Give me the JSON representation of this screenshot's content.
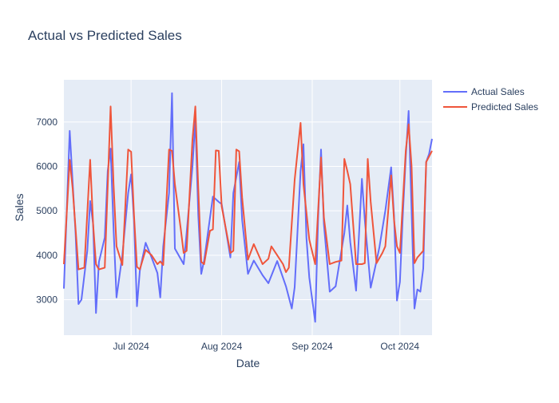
{
  "chart_data": {
    "type": "line",
    "title": "Actual vs Predicted Sales",
    "xlabel": "Date",
    "ylabel": "Sales",
    "x_range": [
      "2024-06-08",
      "2024-10-12"
    ],
    "ylim": [
      2200,
      7950
    ],
    "x_ticks": [
      {
        "date": "2024-07-01",
        "label": "Jul 2024"
      },
      {
        "date": "2024-08-01",
        "label": "Aug 2024"
      },
      {
        "date": "2024-09-01",
        "label": "Sep 2024"
      },
      {
        "date": "2024-10-01",
        "label": "Oct 2024"
      }
    ],
    "y_ticks": [
      3000,
      4000,
      5000,
      6000,
      7000
    ],
    "grid": true,
    "legend_position": "top-right",
    "colors": {
      "plot_bg": "#E5ECF6",
      "grid": "#ffffff",
      "text": "#2a3f5f"
    },
    "series": [
      {
        "name": "Actual Sales",
        "color": "#636EFA",
        "points": [
          [
            "2024-06-08",
            3250
          ],
          [
            "2024-06-10",
            6800
          ],
          [
            "2024-06-12",
            4500
          ],
          [
            "2024-06-13",
            2900
          ],
          [
            "2024-06-14",
            3000
          ],
          [
            "2024-06-16",
            4100
          ],
          [
            "2024-06-17",
            5220
          ],
          [
            "2024-06-18",
            4700
          ],
          [
            "2024-06-19",
            2700
          ],
          [
            "2024-06-20",
            3850
          ],
          [
            "2024-06-22",
            4400
          ],
          [
            "2024-06-23",
            5900
          ],
          [
            "2024-06-24",
            6400
          ],
          [
            "2024-06-25",
            4600
          ],
          [
            "2024-06-26",
            3050
          ],
          [
            "2024-06-28",
            4000
          ],
          [
            "2024-06-30",
            5400
          ],
          [
            "2024-07-01",
            5820
          ],
          [
            "2024-07-02",
            4800
          ],
          [
            "2024-07-03",
            2850
          ],
          [
            "2024-07-04",
            3650
          ],
          [
            "2024-07-06",
            4280
          ],
          [
            "2024-07-08",
            3950
          ],
          [
            "2024-07-10",
            3600
          ],
          [
            "2024-07-11",
            3050
          ],
          [
            "2024-07-12",
            4200
          ],
          [
            "2024-07-14",
            5400
          ],
          [
            "2024-07-15",
            7650
          ],
          [
            "2024-07-16",
            4150
          ],
          [
            "2024-07-19",
            3800
          ],
          [
            "2024-07-20",
            4500
          ],
          [
            "2024-07-22",
            6000
          ],
          [
            "2024-07-23",
            7050
          ],
          [
            "2024-07-24",
            4900
          ],
          [
            "2024-07-25",
            3580
          ],
          [
            "2024-07-26",
            3880
          ],
          [
            "2024-07-29",
            5320
          ],
          [
            "2024-07-31",
            5200
          ],
          [
            "2024-08-01",
            5150
          ],
          [
            "2024-08-04",
            3950
          ],
          [
            "2024-08-05",
            5400
          ],
          [
            "2024-08-07",
            6100
          ],
          [
            "2024-08-08",
            4800
          ],
          [
            "2024-08-10",
            3580
          ],
          [
            "2024-08-12",
            3880
          ],
          [
            "2024-08-15",
            3550
          ],
          [
            "2024-08-17",
            3370
          ],
          [
            "2024-08-20",
            3870
          ],
          [
            "2024-08-23",
            3300
          ],
          [
            "2024-08-25",
            2800
          ],
          [
            "2024-08-26",
            3280
          ],
          [
            "2024-08-28",
            5900
          ],
          [
            "2024-08-29",
            6500
          ],
          [
            "2024-08-30",
            4400
          ],
          [
            "2024-08-31",
            3500
          ],
          [
            "2024-09-02",
            2500
          ],
          [
            "2024-09-03",
            4800
          ],
          [
            "2024-09-04",
            6380
          ],
          [
            "2024-09-05",
            4700
          ],
          [
            "2024-09-07",
            3180
          ],
          [
            "2024-09-09",
            3300
          ],
          [
            "2024-09-10",
            3700
          ],
          [
            "2024-09-12",
            4500
          ],
          [
            "2024-09-13",
            5120
          ],
          [
            "2024-09-14",
            4300
          ],
          [
            "2024-09-16",
            3200
          ],
          [
            "2024-09-18",
            5720
          ],
          [
            "2024-09-19",
            4800
          ],
          [
            "2024-09-21",
            3270
          ],
          [
            "2024-09-23",
            3870
          ],
          [
            "2024-09-24",
            4180
          ],
          [
            "2024-09-26",
            5000
          ],
          [
            "2024-09-28",
            5980
          ],
          [
            "2024-09-29",
            4900
          ],
          [
            "2024-09-30",
            2980
          ],
          [
            "2024-10-01",
            3400
          ],
          [
            "2024-10-02",
            4900
          ],
          [
            "2024-10-03",
            6200
          ],
          [
            "2024-10-04",
            7250
          ],
          [
            "2024-10-05",
            5000
          ],
          [
            "2024-10-06",
            2800
          ],
          [
            "2024-10-07",
            3230
          ],
          [
            "2024-10-08",
            3180
          ],
          [
            "2024-10-09",
            3700
          ],
          [
            "2024-10-10",
            6100
          ],
          [
            "2024-10-11",
            6280
          ],
          [
            "2024-10-12",
            6620
          ]
        ]
      },
      {
        "name": "Predicted Sales",
        "color": "#EF553B",
        "points": [
          [
            "2024-06-08",
            3800
          ],
          [
            "2024-06-10",
            6150
          ],
          [
            "2024-06-11",
            5500
          ],
          [
            "2024-06-13",
            3680
          ],
          [
            "2024-06-15",
            3720
          ],
          [
            "2024-06-17",
            6150
          ],
          [
            "2024-06-18",
            4700
          ],
          [
            "2024-06-19",
            3800
          ],
          [
            "2024-06-20",
            3680
          ],
          [
            "2024-06-22",
            3720
          ],
          [
            "2024-06-24",
            7350
          ],
          [
            "2024-06-25",
            5600
          ],
          [
            "2024-06-26",
            4200
          ],
          [
            "2024-06-28",
            3780
          ],
          [
            "2024-06-30",
            6380
          ],
          [
            "2024-07-01",
            6330
          ],
          [
            "2024-07-02",
            4900
          ],
          [
            "2024-07-03",
            3740
          ],
          [
            "2024-07-04",
            3680
          ],
          [
            "2024-07-06",
            4120
          ],
          [
            "2024-07-08",
            4000
          ],
          [
            "2024-07-10",
            3800
          ],
          [
            "2024-07-11",
            3860
          ],
          [
            "2024-07-12",
            3780
          ],
          [
            "2024-07-14",
            6380
          ],
          [
            "2024-07-15",
            6350
          ],
          [
            "2024-07-16",
            5600
          ],
          [
            "2024-07-18",
            4600
          ],
          [
            "2024-07-19",
            4050
          ],
          [
            "2024-07-20",
            4100
          ],
          [
            "2024-07-22",
            6600
          ],
          [
            "2024-07-23",
            7350
          ],
          [
            "2024-07-24",
            5500
          ],
          [
            "2024-07-25",
            3850
          ],
          [
            "2024-07-26",
            3800
          ],
          [
            "2024-07-28",
            4550
          ],
          [
            "2024-07-29",
            4580
          ],
          [
            "2024-07-30",
            6360
          ],
          [
            "2024-07-31",
            6350
          ],
          [
            "2024-08-01",
            5100
          ],
          [
            "2024-08-04",
            4050
          ],
          [
            "2024-08-05",
            4100
          ],
          [
            "2024-08-06",
            6380
          ],
          [
            "2024-08-07",
            6340
          ],
          [
            "2024-08-08",
            5300
          ],
          [
            "2024-08-10",
            3900
          ],
          [
            "2024-08-12",
            4250
          ],
          [
            "2024-08-15",
            3800
          ],
          [
            "2024-08-17",
            3920
          ],
          [
            "2024-08-18",
            4200
          ],
          [
            "2024-08-20",
            4000
          ],
          [
            "2024-08-22",
            3800
          ],
          [
            "2024-08-23",
            3620
          ],
          [
            "2024-08-24",
            3720
          ],
          [
            "2024-08-26",
            5700
          ],
          [
            "2024-08-28",
            6980
          ],
          [
            "2024-08-29",
            5600
          ],
          [
            "2024-08-31",
            4350
          ],
          [
            "2024-09-02",
            3800
          ],
          [
            "2024-09-04",
            6200
          ],
          [
            "2024-09-05",
            4850
          ],
          [
            "2024-09-07",
            3800
          ],
          [
            "2024-09-09",
            3850
          ],
          [
            "2024-09-11",
            3880
          ],
          [
            "2024-09-12",
            6170
          ],
          [
            "2024-09-13",
            5900
          ],
          [
            "2024-09-14",
            5600
          ],
          [
            "2024-09-16",
            3800
          ],
          [
            "2024-09-18",
            3800
          ],
          [
            "2024-09-19",
            3820
          ],
          [
            "2024-09-20",
            6170
          ],
          [
            "2024-09-21",
            5200
          ],
          [
            "2024-09-23",
            3820
          ],
          [
            "2024-09-25",
            4050
          ],
          [
            "2024-09-26",
            4200
          ],
          [
            "2024-09-28",
            5800
          ],
          [
            "2024-09-29",
            4800
          ],
          [
            "2024-09-30",
            4200
          ],
          [
            "2024-10-01",
            4050
          ],
          [
            "2024-10-03",
            6350
          ],
          [
            "2024-10-04",
            6950
          ],
          [
            "2024-10-05",
            6000
          ],
          [
            "2024-10-06",
            3820
          ],
          [
            "2024-10-07",
            3950
          ],
          [
            "2024-10-09",
            4100
          ],
          [
            "2024-10-10",
            6100
          ],
          [
            "2024-10-12",
            6350
          ]
        ]
      }
    ]
  }
}
